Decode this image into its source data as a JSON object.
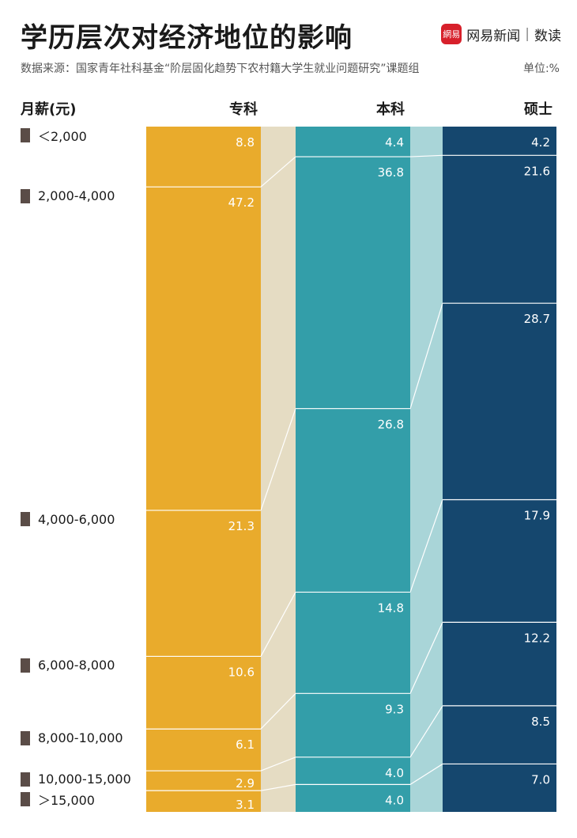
{
  "header": {
    "title": "学历层次对经济地位的影响",
    "source": "数据来源：国家青年社科基金“阶层固化趋势下农村籍大学生就业问题研究”课题组",
    "unit": "单位:%",
    "brand_logo": "網易",
    "brand_name": "网易新闻",
    "brand_section": "数读"
  },
  "colors": {
    "zhuanke": "#e9ab2c",
    "zhuanke_band": "#e5dcc3",
    "benke": "#339ea9",
    "benke_band": "#a9d5d8",
    "shuoshi": "#15476e",
    "category_marker": "#5a4c47"
  },
  "chart_data": {
    "type": "bar",
    "subtype": "stacked-100-percent-columns",
    "ylabel": "月薪(元)",
    "categories": [
      "＜2,000",
      "2,000-4,000",
      "4,000-6,000",
      "6,000-8,000",
      "8,000-10,000",
      "10,000-15,000",
      "＞15,000"
    ],
    "series": [
      {
        "name": "专科",
        "values": [
          8.8,
          47.2,
          21.3,
          10.6,
          6.1,
          2.9,
          3.1
        ]
      },
      {
        "name": "本科",
        "values": [
          4.4,
          36.8,
          26.8,
          14.8,
          9.3,
          4.0,
          4.0
        ]
      },
      {
        "name": "硕士",
        "values": [
          4.2,
          21.6,
          28.7,
          17.9,
          12.2,
          8.5,
          7.0
        ]
      }
    ]
  }
}
